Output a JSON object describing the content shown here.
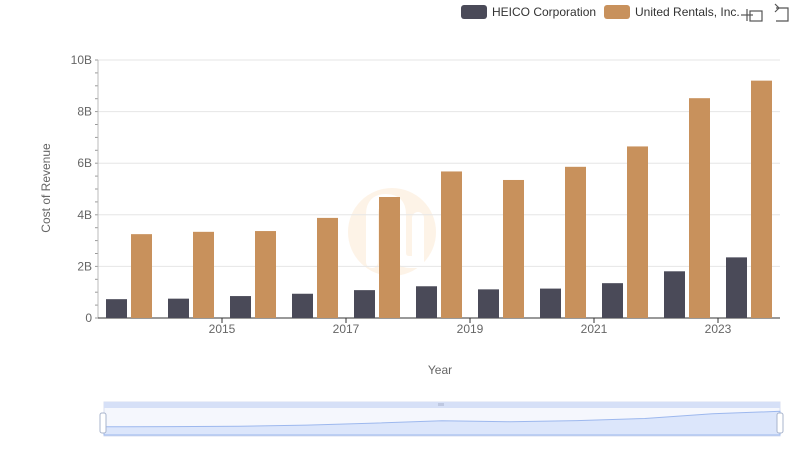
{
  "chart_data": {
    "type": "bar",
    "title": "",
    "xlabel": "Year",
    "ylabel": "Cost of Revenue",
    "x": [
      2014,
      2015,
      2016,
      2017,
      2018,
      2019,
      2020,
      2021,
      2022,
      2023,
      2024
    ],
    "x_tick_labels": [
      "2015",
      "2017",
      "2019",
      "2021",
      "2023"
    ],
    "x_tick_values": [
      2015,
      2017,
      2019,
      2021,
      2023
    ],
    "y_ticks": [
      {
        "value": 0,
        "label": "0"
      },
      {
        "value": 2000000000,
        "label": "2B"
      },
      {
        "value": 4000000000,
        "label": "4B"
      },
      {
        "value": 6000000000,
        "label": "6B"
      },
      {
        "value": 8000000000,
        "label": "8B"
      },
      {
        "value": 10000000000,
        "label": "10B"
      }
    ],
    "ylim": [
      0,
      10000000000
    ],
    "grid": true,
    "legend_position": "top-right",
    "series": [
      {
        "name": "HEICO Corporation",
        "color": "#4a4a58",
        "values": [
          730000000,
          750000000,
          850000000,
          940000000,
          1080000000,
          1230000000,
          1110000000,
          1140000000,
          1350000000,
          1810000000,
          2350000000
        ]
      },
      {
        "name": "United Rentals, Inc.",
        "color": "#c8915c",
        "values": [
          3250000000,
          3340000000,
          3370000000,
          3880000000,
          4690000000,
          5680000000,
          5350000000,
          5860000000,
          6650000000,
          8520000000,
          9200000000
        ]
      }
    ]
  },
  "toolbar": {
    "icons": [
      "zoom-crosshair-icon",
      "reset-zoom-icon"
    ]
  },
  "colors": {
    "grid": "#e6e6e6",
    "navigator_fill": "#dce6fb",
    "navigator_line": "#9db8ee"
  }
}
